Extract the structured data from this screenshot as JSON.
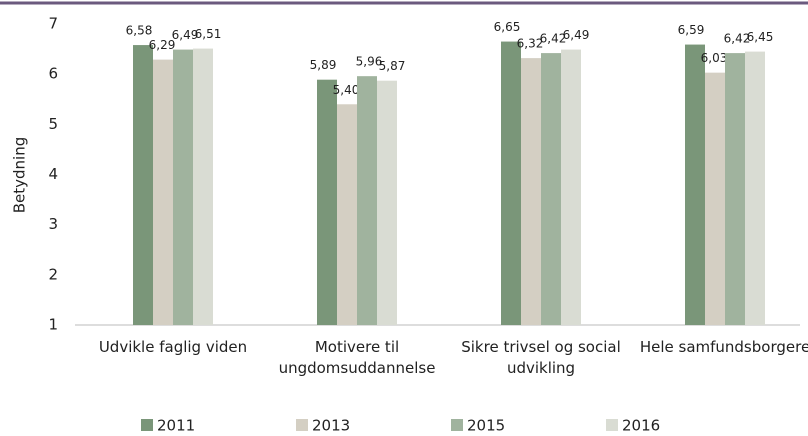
{
  "chart_data": {
    "type": "bar",
    "y_label": "Betydning",
    "categories": [
      "Udvikle faglig viden",
      "Motivere til ungdomsuddannelse",
      "Sikre trivsel og social udvikling",
      "Hele samfundsborgere"
    ],
    "series": [
      {
        "name": "2011",
        "color": "#7a9679",
        "values": [
          6.58,
          5.89,
          6.65,
          6.59
        ],
        "value_labels": [
          "6,58",
          "5,89",
          "6,65",
          "6,59"
        ]
      },
      {
        "name": "2013",
        "color": "#d4cfc3",
        "values": [
          6.29,
          5.4,
          6.32,
          6.03
        ],
        "value_labels": [
          "6,29",
          "5,40",
          "6,32",
          "6,03"
        ]
      },
      {
        "name": "2015",
        "color": "#a0b39e",
        "values": [
          6.49,
          5.96,
          6.42,
          6.42
        ],
        "value_labels": [
          "6,49",
          "5,96",
          "6,42",
          "6,42"
        ]
      },
      {
        "name": "2016",
        "color": "#d9dcd3",
        "values": [
          6.51,
          5.87,
          6.49,
          6.45
        ],
        "value_labels": [
          "6,51",
          "5,87",
          "6,49",
          "6,45"
        ]
      }
    ],
    "ylim": [
      1,
      7
    ],
    "yticks": [
      1,
      2,
      3,
      4,
      5,
      6,
      7
    ],
    "grid": false,
    "legend": "bottom"
  }
}
